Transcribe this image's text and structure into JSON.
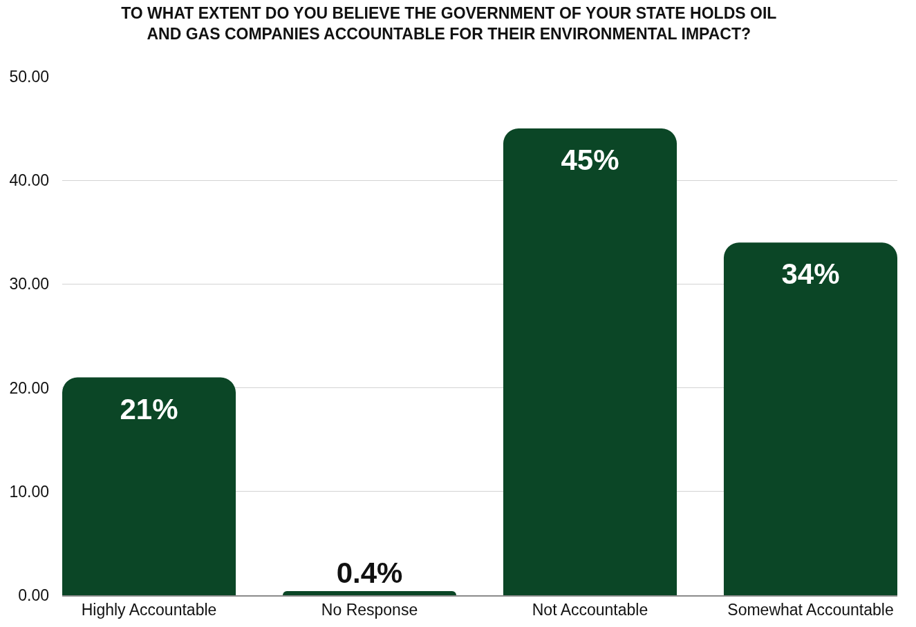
{
  "chart_data": {
    "type": "bar",
    "title": "TO WHAT EXTENT DO YOU BELIEVE THE GOVERNMENT OF YOUR STATE HOLDS OIL AND GAS COMPANIES ACCOUNTABLE FOR THEIR ENVIRONMENTAL IMPACT?",
    "categories": [
      "Highly Accountable",
      "No Response",
      "Not Accountable",
      "Somewhat Accountable"
    ],
    "values": [
      21,
      0.4,
      45,
      34
    ],
    "color": "#0b4626",
    "value_labels": [
      "21%",
      "0.4%",
      "45%",
      "34%"
    ],
    "ylim": [
      0,
      50
    ],
    "yticks": [
      {
        "value": 0,
        "label": "0.00"
      },
      {
        "value": 10,
        "label": "10.00"
      },
      {
        "value": 20,
        "label": "20.00"
      },
      {
        "value": 30,
        "label": "30.00"
      },
      {
        "value": 40,
        "label": "40.00"
      },
      {
        "value": 50,
        "label": "50.00"
      }
    ],
    "grid": "y"
  }
}
